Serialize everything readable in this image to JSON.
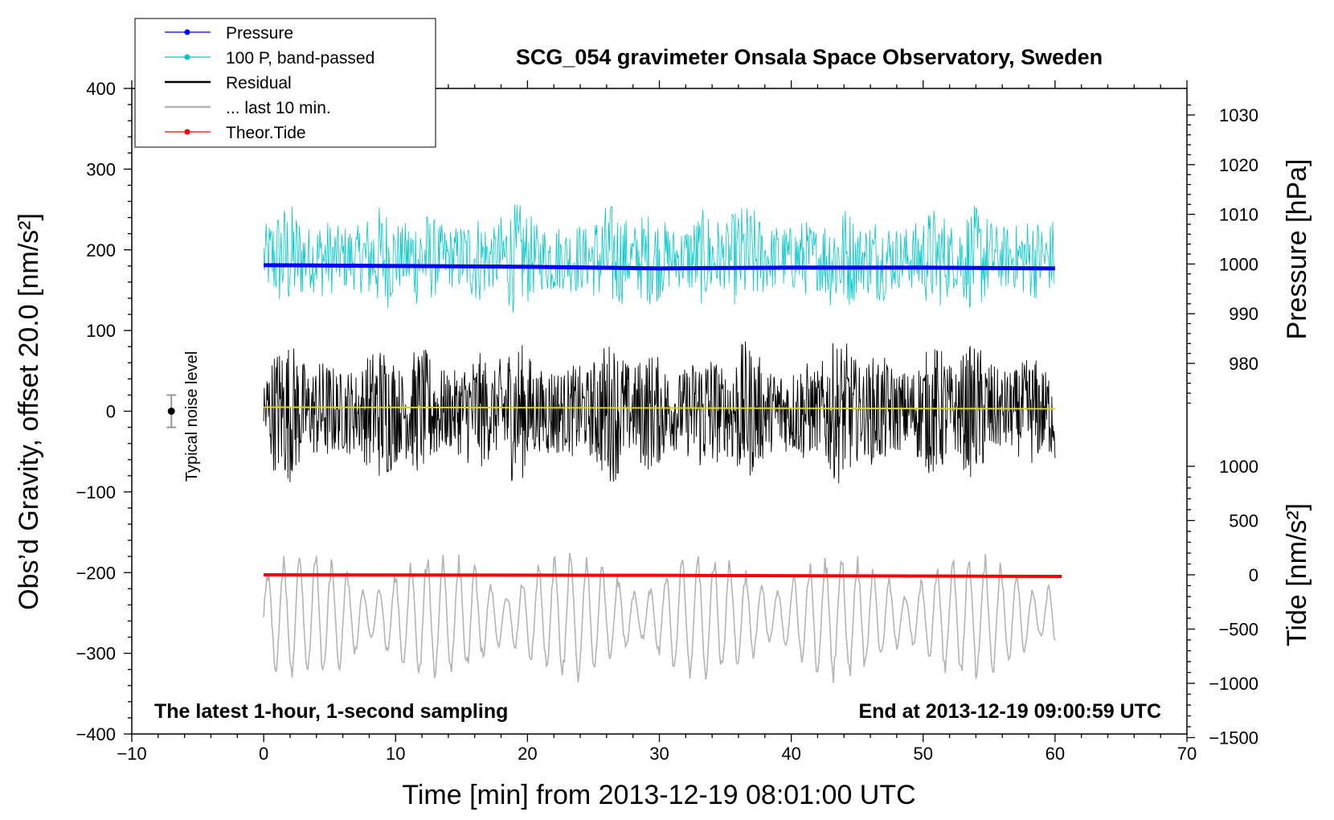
{
  "chart_data": {
    "type": "line",
    "title": "SCG_054 gravimeter Onsala Space Observatory, Sweden",
    "xlabel": "Time [min] from 2013-12-19 08:01:00 UTC",
    "ylabel_main": "Obs’d Gravity, offset 20.0 [nm/s²]",
    "ylabel_pressure": "Pressure [hPa]",
    "ylabel_tide": "Tide [nm/s²]",
    "xlim": [
      -10,
      70
    ],
    "ylim": [
      -400,
      400
    ],
    "x_ticks": [
      -10,
      0,
      10,
      20,
      30,
      40,
      50,
      60,
      70
    ],
    "y_ticks": [
      -400,
      -300,
      -200,
      -100,
      0,
      100,
      200,
      300,
      400
    ],
    "pressure_axis": {
      "range": [
        970,
        1033
      ],
      "ticks": [
        980,
        990,
        1000,
        1010,
        1020,
        1030
      ]
    },
    "tide_axis": {
      "range": [
        -1500,
        1000
      ],
      "ticks": [
        -1500,
        -1000,
        -500,
        0,
        500,
        1000
      ]
    },
    "grid": false,
    "legend_position": "top-left",
    "legend": [
      {
        "label": "Pressure",
        "color": "#0000ff"
      },
      {
        "label": "100 P, band-passed",
        "color": "#00c8c8"
      },
      {
        "label": "Residual",
        "color": "#000000"
      },
      {
        "label": "... last 10 min.",
        "color": "#b4b4b4"
      },
      {
        "label": "Theor.Tide",
        "color": "#ff0000"
      }
    ],
    "annotations": {
      "noise_label": "Typical noise level",
      "noise_marker": {
        "x": -7,
        "y": 0,
        "err": 20
      },
      "bottom_left": "The latest 1-hour, 1-second sampling",
      "bottom_right": "End at 2013-12-19 09:00:59 UTC"
    },
    "series": [
      {
        "name": "Pressure",
        "axis": "main",
        "color": "#0000ff",
        "x": [
          0,
          10,
          20,
          30,
          40,
          50,
          60
        ],
        "y": [
          181,
          180,
          179,
          177,
          178,
          178,
          177
        ]
      },
      {
        "name": "100 P, band-passed",
        "axis": "main",
        "color": "#00c8c8",
        "x_range": [
          0,
          60
        ],
        "center": 190,
        "amplitude_approx": 70
      },
      {
        "name": "Residual",
        "axis": "main",
        "color": "#000000",
        "x_range": [
          0,
          60
        ],
        "center": 0,
        "amplitude_approx": 90
      },
      {
        "name": "Residual mean",
        "axis": "main",
        "color": "#d8d800",
        "x": [
          0,
          60
        ],
        "y": [
          5,
          3
        ]
      },
      {
        "name": "... last 10 min.",
        "axis": "main",
        "color": "#b4b4b4",
        "x_range": [
          0,
          60
        ],
        "center": -255,
        "amplitude_approx": 70
      },
      {
        "name": "Theor.Tide",
        "axis": "tide",
        "color": "#ff0000",
        "x": [
          0,
          30,
          60.5
        ],
        "y": [
          0,
          -5,
          -15
        ]
      }
    ]
  }
}
